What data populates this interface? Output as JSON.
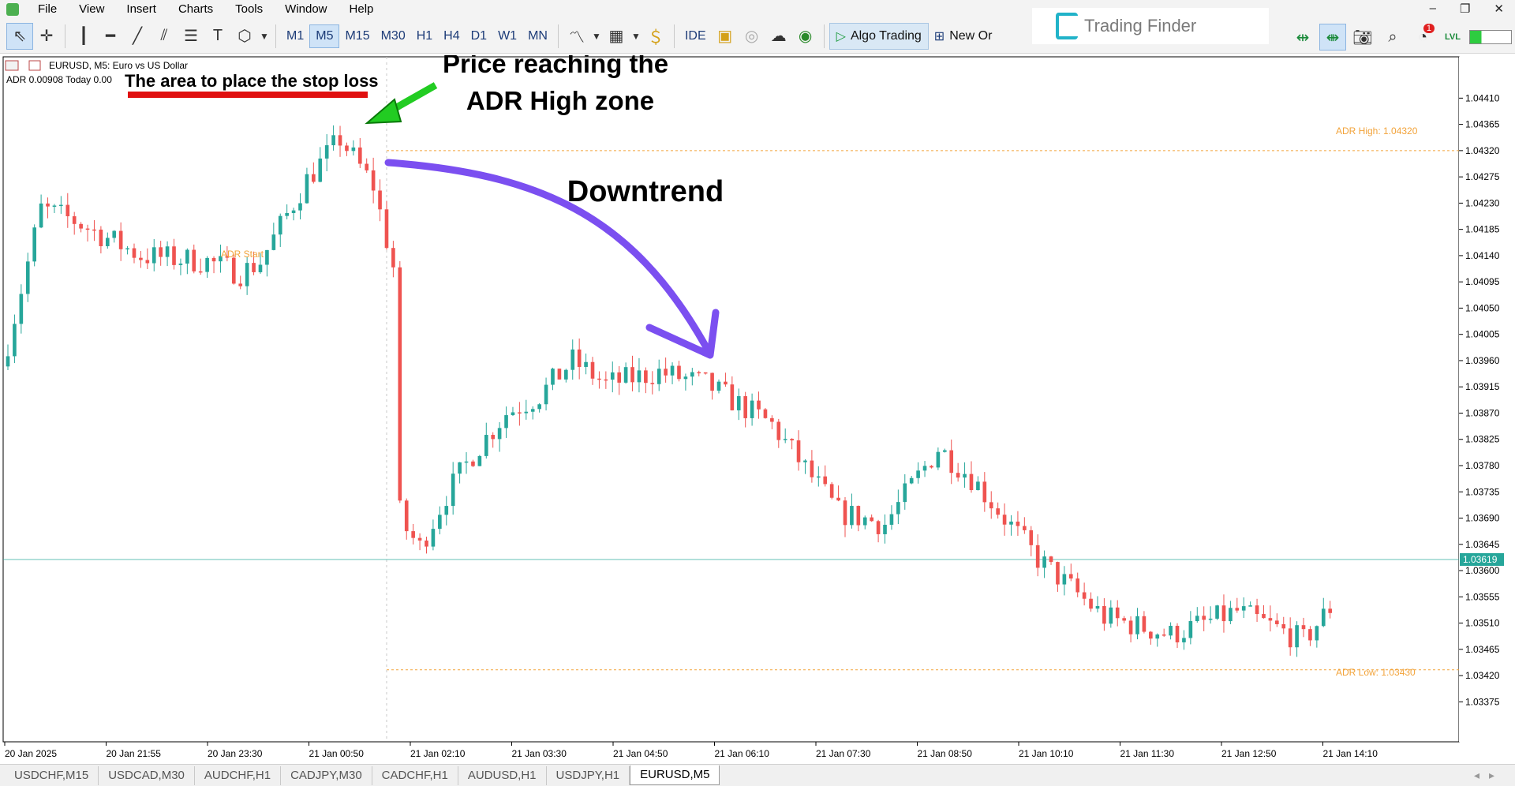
{
  "menu": [
    "File",
    "View",
    "Insert",
    "Charts",
    "Tools",
    "Window",
    "Help"
  ],
  "window_buttons": [
    "–",
    "❐",
    "✕"
  ],
  "toolbar": {
    "timeframes": [
      "M1",
      "M5",
      "M15",
      "M30",
      "H1",
      "H4",
      "D1",
      "W1",
      "MN"
    ],
    "selected_timeframe": "M5",
    "ide_label": "IDE",
    "algo_label": "Algo Trading",
    "new_order_label": "New Or",
    "notification_count": "1",
    "lvl_label": "LVL"
  },
  "brand": "Trading Finder",
  "chart_header": {
    "symbol_line": "EURUSD, M5:  Euro vs US Dollar",
    "indicator_line": "ADR 0.00908  Today 0.00"
  },
  "annotations": {
    "stop_loss": "The area to place the stop loss",
    "price_reach_1": "Price reaching the",
    "price_reach_2": "ADR High zone",
    "downtrend": "Downtrend",
    "adr_start": "ADR Start",
    "adr_high": "ADR High: 1.04320",
    "adr_low": "ADR Low: 1.03430"
  },
  "colors": {
    "bull": "#26a69a",
    "bear": "#ef5350",
    "adr_level": "#f2a33a",
    "current_price": "#26a69a",
    "arrow_green": "#22cc22",
    "arrow_purple": "#7b4ff0",
    "stop_bar": "#e01010"
  },
  "tabs": [
    "USDCHF,M15",
    "USDCAD,M30",
    "AUDCHF,H1",
    "CADJPY,M30",
    "CADCHF,H1",
    "AUDUSD,H1",
    "USDJPY,H1",
    "EURUSD,M5"
  ],
  "active_tab": "EURUSD,M5",
  "chart_data": {
    "type": "candlestick",
    "symbol": "EURUSD",
    "timeframe": "M5",
    "ylim": [
      1.0332,
      1.0447
    ],
    "y_ticks": [
      1.0441,
      1.04365,
      1.0432,
      1.04275,
      1.0423,
      1.04185,
      1.0414,
      1.04095,
      1.0405,
      1.04005,
      1.0396,
      1.03915,
      1.0387,
      1.03825,
      1.0378,
      1.03735,
      1.0369,
      1.03645,
      1.036,
      1.03555,
      1.0351,
      1.03465,
      1.0342,
      1.03375
    ],
    "x_labels": [
      "20 Jan 2025",
      "20 Jan 21:55",
      "20 Jan 23:30",
      "21 Jan 00:50",
      "21 Jan 02:10",
      "21 Jan 03:30",
      "21 Jan 04:50",
      "21 Jan 06:10",
      "21 Jan 07:30",
      "21 Jan 08:50",
      "21 Jan 10:10",
      "21 Jan 11:30",
      "21 Jan 12:50",
      "21 Jan 14:10"
    ],
    "current_price": 1.03619,
    "adr_high": 1.0432,
    "adr_low": 1.0343,
    "candle_count": 200,
    "anchors": [
      [
        0,
        1.0399
      ],
      [
        5,
        1.0422
      ],
      [
        10,
        1.042
      ],
      [
        20,
        1.0414
      ],
      [
        30,
        1.0413
      ],
      [
        35,
        1.0411
      ],
      [
        38,
        1.0413
      ],
      [
        45,
        1.0427
      ],
      [
        50,
        1.0434
      ],
      [
        55,
        1.0426
      ],
      [
        58,
        1.0412
      ],
      [
        59,
        1.037
      ],
      [
        60,
        1.0367
      ],
      [
        62,
        1.0364
      ],
      [
        66,
        1.0373
      ],
      [
        70,
        1.038
      ],
      [
        75,
        1.0387
      ],
      [
        80,
        1.039
      ],
      [
        85,
        1.0396
      ],
      [
        90,
        1.0392
      ],
      [
        98,
        1.0394
      ],
      [
        105,
        1.0392
      ],
      [
        115,
        1.0385
      ],
      [
        125,
        1.037
      ],
      [
        132,
        1.0368
      ],
      [
        140,
        1.0381
      ],
      [
        145,
        1.0376
      ],
      [
        155,
        1.0362
      ],
      [
        165,
        1.0352
      ],
      [
        175,
        1.0349
      ],
      [
        185,
        1.0353
      ],
      [
        195,
        1.0348
      ],
      [
        200,
        1.0355
      ],
      [
        206,
        1.0363
      ],
      [
        213,
        1.0365
      ]
    ]
  }
}
